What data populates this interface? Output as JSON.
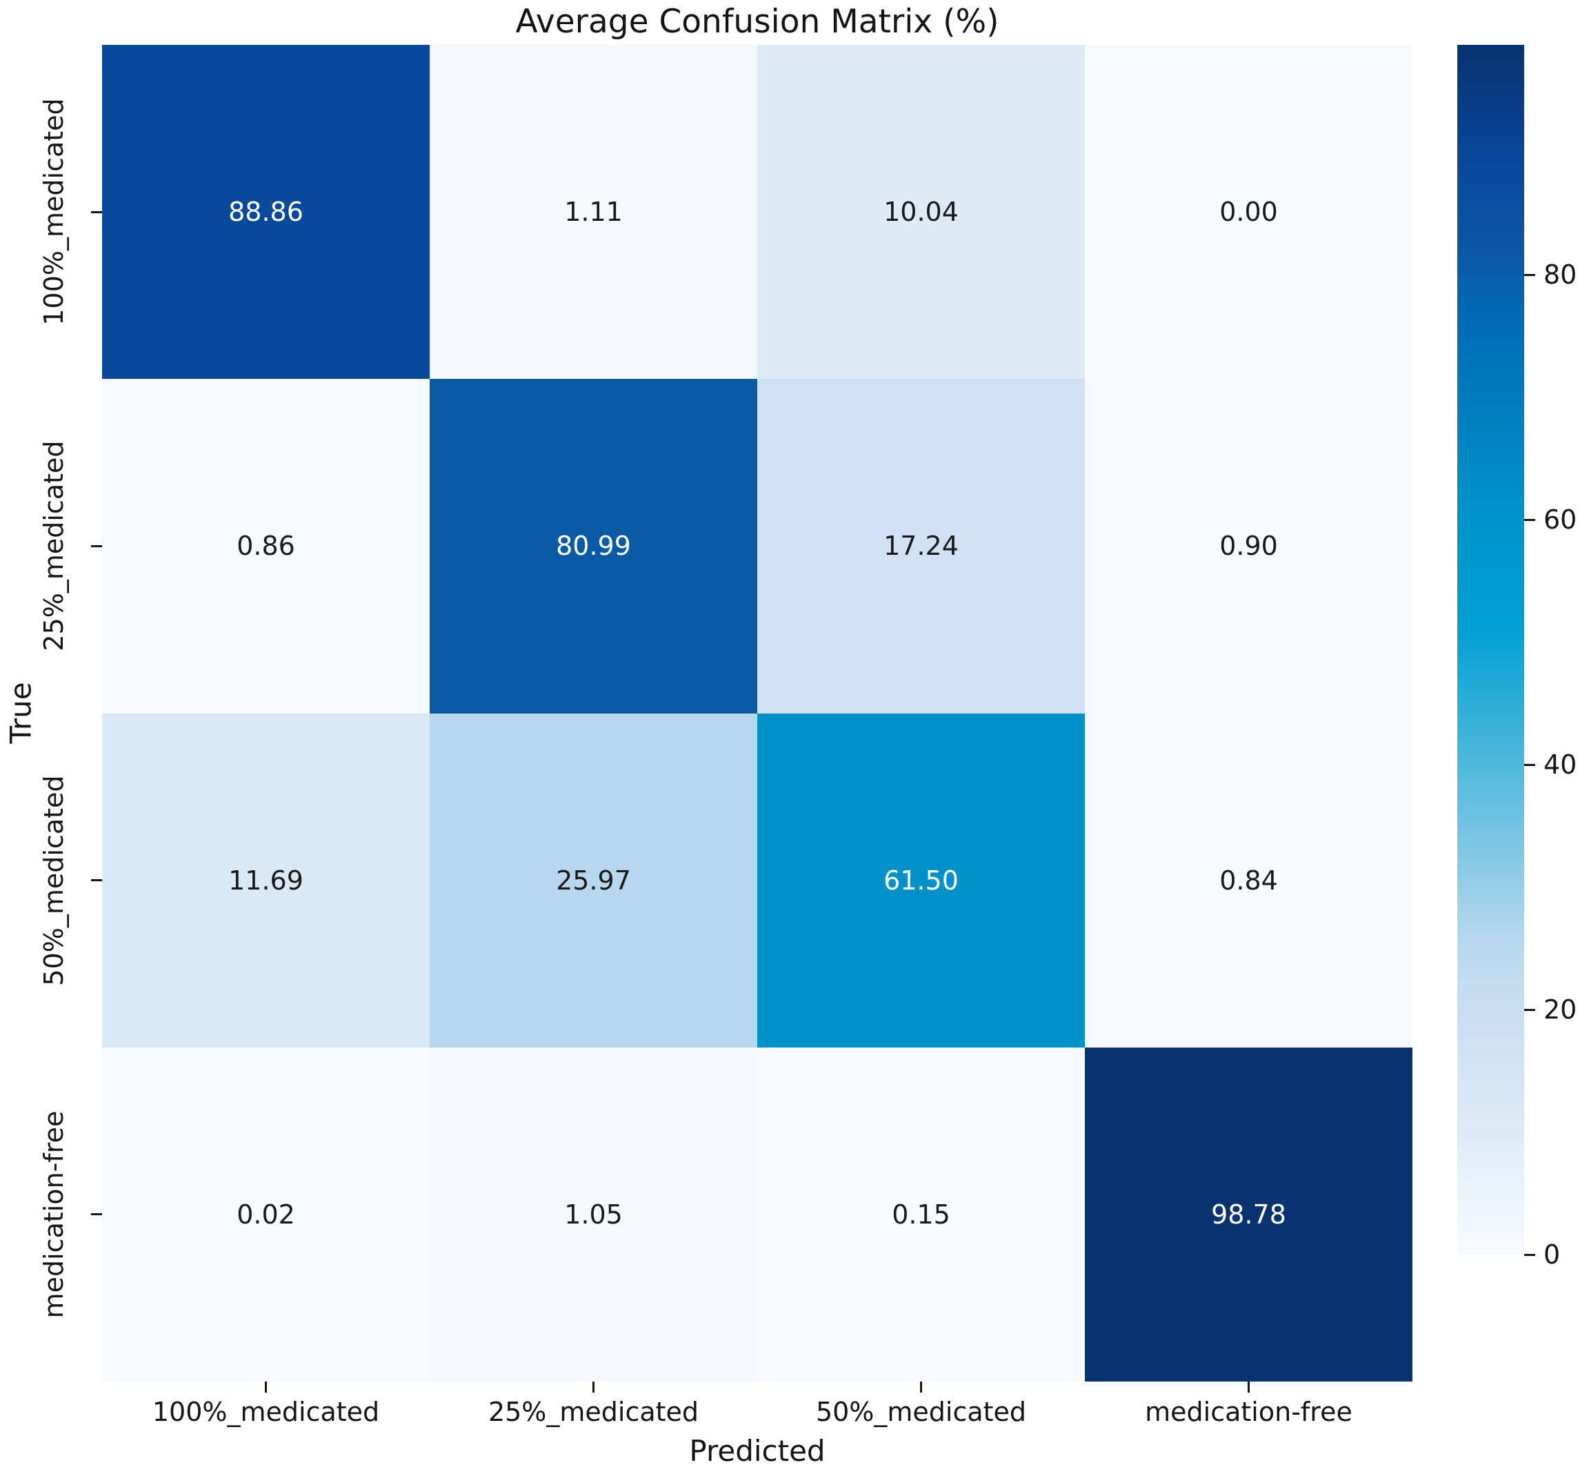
{
  "title": "Average Confusion Matrix (%)",
  "chart_data": {
    "type": "heatmap",
    "title": "Average Confusion Matrix (%)",
    "xlabel": "Predicted",
    "ylabel": "True",
    "x_categories": [
      "100%_medicated",
      "25%_medicated",
      "50%_medicated",
      "medication-free"
    ],
    "y_categories": [
      "100%_medicated",
      "25%_medicated",
      "50%_medicated",
      "medication-free"
    ],
    "rows": [
      [
        88.86,
        1.11,
        10.04,
        0.0
      ],
      [
        0.86,
        80.99,
        17.24,
        0.9
      ],
      [
        11.69,
        25.97,
        61.5,
        0.84
      ],
      [
        0.02,
        1.05,
        0.15,
        98.78
      ]
    ],
    "value_format_decimals": 2,
    "vmin": 0,
    "vmax": 98.78,
    "colorbar_ticks": [
      0,
      20,
      40,
      60,
      80
    ],
    "legend_position": "right",
    "grid": false,
    "colors": {
      "text_dark": "#1a1a1a",
      "text_light": "#ffffff",
      "colormap_stops": [
        {
          "t": 0.0,
          "color": "#f7fbff"
        },
        {
          "t": 0.1,
          "color": "#deebf7"
        },
        {
          "t": 0.175,
          "color": "#cfe1f2"
        },
        {
          "t": 0.26,
          "color": "#b8d8ee"
        },
        {
          "t": 0.33,
          "color": "#82c8e4"
        },
        {
          "t": 0.52,
          "color": "#00a0d2"
        },
        {
          "t": 0.62,
          "color": "#0092c8"
        },
        {
          "t": 0.78,
          "color": "#0069b4"
        },
        {
          "t": 0.82,
          "color": "#0b5aa5"
        },
        {
          "t": 0.9,
          "color": "#08499c"
        },
        {
          "t": 1.0,
          "color": "#083270"
        }
      ]
    }
  }
}
